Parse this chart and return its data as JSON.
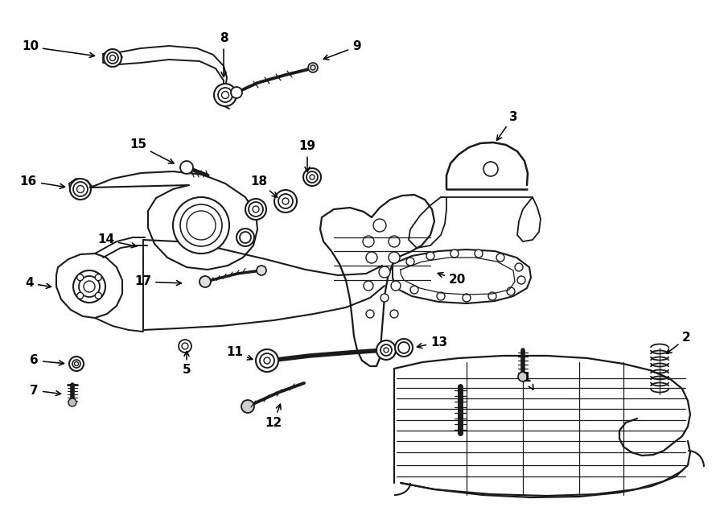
{
  "bg_color": "#ffffff",
  "line_color": "#1a1a1a",
  "label_fontsize": 11,
  "figsize": [
    9.0,
    6.61
  ],
  "dpi": 100,
  "labels": {
    "1": [
      655,
      470,
      670,
      490
    ],
    "2": [
      845,
      425,
      826,
      443
    ],
    "3": [
      638,
      148,
      620,
      178
    ],
    "4": [
      48,
      355,
      80,
      360
    ],
    "5": [
      238,
      458,
      238,
      432
    ],
    "6": [
      55,
      452,
      88,
      453
    ],
    "7": [
      55,
      488,
      83,
      490
    ],
    "8": [
      278,
      50,
      278,
      97
    ],
    "9": [
      435,
      60,
      395,
      75
    ],
    "10": [
      55,
      62,
      128,
      72
    ],
    "11": [
      305,
      440,
      330,
      447
    ],
    "12": [
      342,
      525,
      355,
      500
    ],
    "13": [
      535,
      428,
      510,
      433
    ],
    "14": [
      148,
      298,
      178,
      305
    ],
    "15": [
      185,
      183,
      220,
      205
    ],
    "16": [
      52,
      228,
      93,
      233
    ],
    "17": [
      192,
      352,
      233,
      355
    ],
    "18": [
      338,
      228,
      348,
      248
    ],
    "19": [
      388,
      185,
      378,
      232
    ],
    "20": [
      560,
      348,
      545,
      340
    ]
  }
}
